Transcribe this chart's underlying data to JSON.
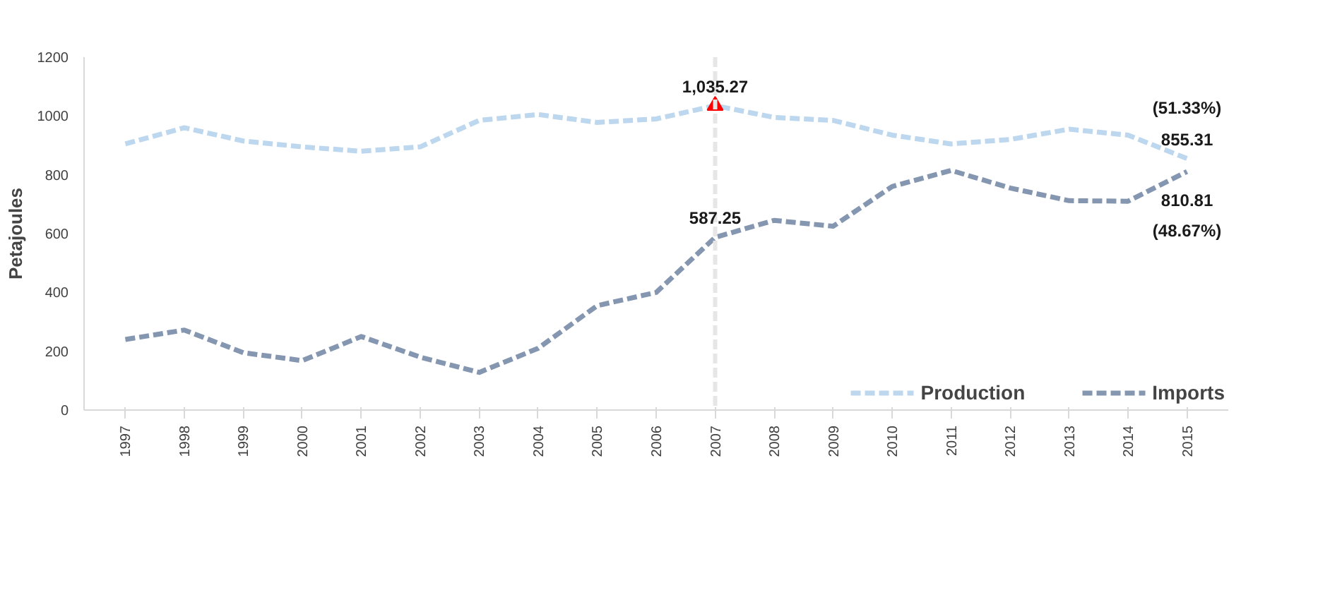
{
  "chart_data": {
    "type": "line",
    "ylabel": "Petajoules",
    "categories": [
      "1997",
      "1998",
      "1999",
      "2000",
      "2001",
      "2002",
      "2003",
      "2004",
      "2005",
      "2006",
      "2007",
      "2008",
      "2009",
      "2010",
      "2011",
      "2012",
      "2013",
      "2014",
      "2015"
    ],
    "series": [
      {
        "name": "Production",
        "color": "#bdd7ee",
        "values": [
          905,
          960,
          915,
          895,
          880,
          895,
          985,
          1005,
          978,
          990,
          1035.27,
          995,
          985,
          935,
          905,
          920,
          955,
          935,
          855.31
        ]
      },
      {
        "name": "Imports",
        "color": "#8496b0",
        "values": [
          240,
          272,
          195,
          168,
          250,
          180,
          128,
          210,
          355,
          400,
          587.25,
          645,
          625,
          760,
          815,
          755,
          712,
          710,
          810.81
        ]
      },
      {
        "type": "scatter",
        "color": "#ff0000",
        "marker": "triangle",
        "values": [
          null,
          null,
          null,
          null,
          null,
          null,
          null,
          null,
          null,
          null,
          1035.27,
          null,
          null,
          null,
          null,
          null,
          null,
          null,
          null
        ]
      }
    ],
    "ylim": [
      0,
      1200
    ],
    "yticks": [
      0,
      200,
      400,
      600,
      800,
      1000,
      1200
    ],
    "ref_lines": [
      {
        "axis": "x",
        "value": "2007",
        "color": "#e7e6e6",
        "line_style": "dashed"
      }
    ],
    "annotations": [
      {
        "text": "1,035.27",
        "x": "2007",
        "y": 1035.27
      },
      {
        "text": "587.25",
        "x": "2007",
        "y": 587.25
      },
      {
        "text": "(51.33%)",
        "x": "2015",
        "y": 855.31
      },
      {
        "text": "855.31",
        "x": "2015",
        "y": 855.31
      },
      {
        "text": "810.81",
        "x": "2015",
        "y": 810.81
      },
      {
        "text": "(48.67%)",
        "x": "2015",
        "y": 810.81
      }
    ],
    "grid": false,
    "legend": "bottom right",
    "line_style": "dashed",
    "marker": "none"
  }
}
